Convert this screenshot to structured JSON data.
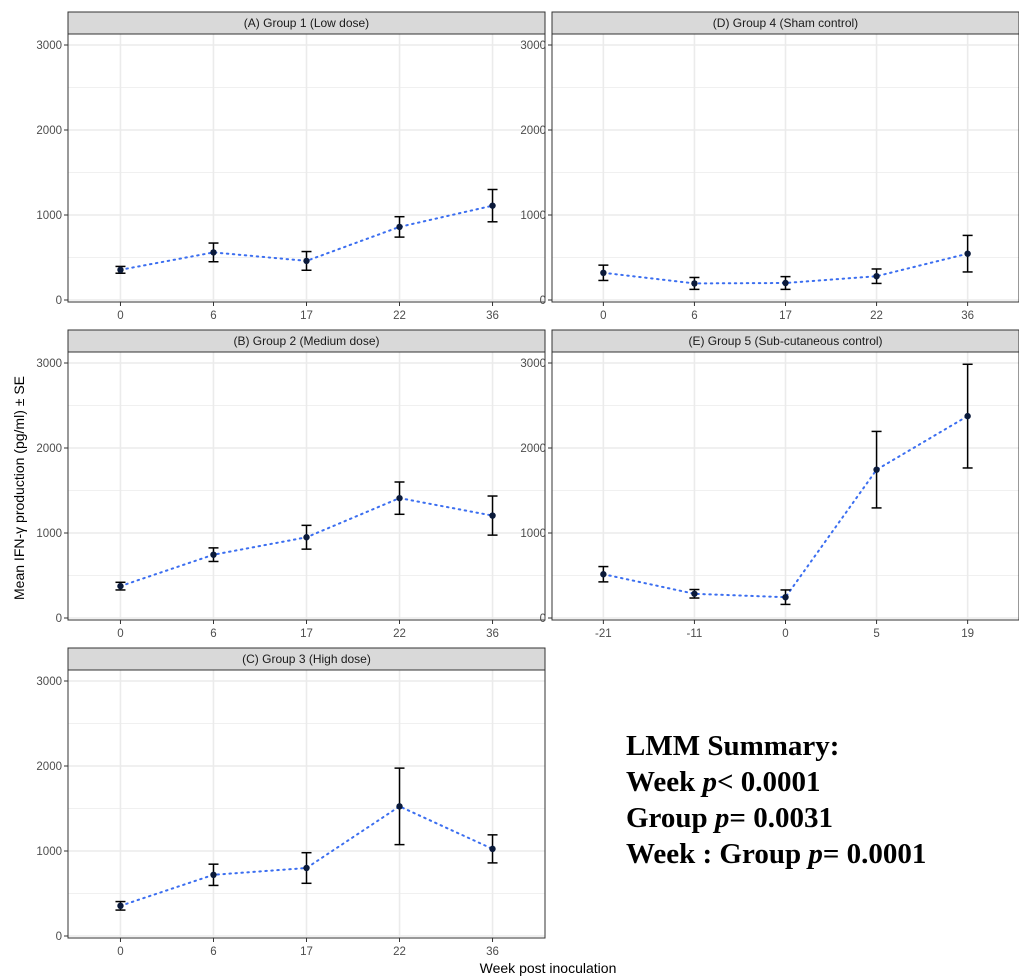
{
  "y_axis_label": "Mean IFN-γ production (pg/ml) ± SE",
  "x_axis_label": "Week post inoculation",
  "summary": {
    "title": "LMM Summary:",
    "line1_prefix": "Week ",
    "line1_p": "p",
    "line1_rest": "< 0.0001",
    "line2_prefix": "Group ",
    "line2_p": "p",
    "line2_rest": "= 0.0031",
    "line3_prefix": "Week : Group ",
    "line3_p": "p",
    "line3_rest": "= 0.0001"
  },
  "colors": {
    "line": "#3b6ef0",
    "point": "#0b1a3a",
    "strip": "#d9d9d9",
    "grid": "#ebebeb"
  },
  "chart_data": [
    {
      "type": "line",
      "title": "(A) Group 1 (Low dose)",
      "categories": [
        "0",
        "6",
        "17",
        "22",
        "36"
      ],
      "values": [
        355,
        560,
        460,
        860,
        1110
      ],
      "error": [
        40,
        110,
        110,
        120,
        190
      ],
      "ylim": [
        0,
        3000
      ],
      "yticks": [
        0,
        1000,
        2000,
        3000
      ]
    },
    {
      "type": "line",
      "title": "(D) Group 4 (Sham control)",
      "categories": [
        "0",
        "6",
        "17",
        "22",
        "36"
      ],
      "values": [
        320,
        195,
        200,
        280,
        545
      ],
      "error": [
        90,
        70,
        75,
        85,
        215
      ],
      "ylim": [
        0,
        3000
      ],
      "yticks": [
        0,
        1000,
        2000,
        3000
      ]
    },
    {
      "type": "line",
      "title": "(B) Group 2 (Medium dose)",
      "categories": [
        "0",
        "6",
        "17",
        "22",
        "36"
      ],
      "values": [
        375,
        745,
        950,
        1410,
        1205
      ],
      "error": [
        45,
        80,
        140,
        190,
        230
      ],
      "ylim": [
        0,
        3000
      ],
      "yticks": [
        0,
        1000,
        2000,
        3000
      ]
    },
    {
      "type": "line",
      "title": "(E) Group 5 (Sub-cutaneous control)",
      "categories": [
        "-21",
        "-11",
        "0",
        "5",
        "19"
      ],
      "values": [
        515,
        285,
        245,
        1745,
        2375
      ],
      "error": [
        90,
        50,
        85,
        450,
        610
      ],
      "ylim": [
        0,
        3000
      ],
      "yticks": [
        0,
        1000,
        2000,
        3000
      ]
    },
    {
      "type": "line",
      "title": "(C) Group 3 (High dose)",
      "categories": [
        "0",
        "6",
        "17",
        "22",
        "36"
      ],
      "values": [
        355,
        720,
        800,
        1525,
        1025
      ],
      "error": [
        50,
        125,
        180,
        450,
        165
      ],
      "ylim": [
        0,
        3000
      ],
      "yticks": [
        0,
        1000,
        2000,
        3000
      ]
    }
  ]
}
